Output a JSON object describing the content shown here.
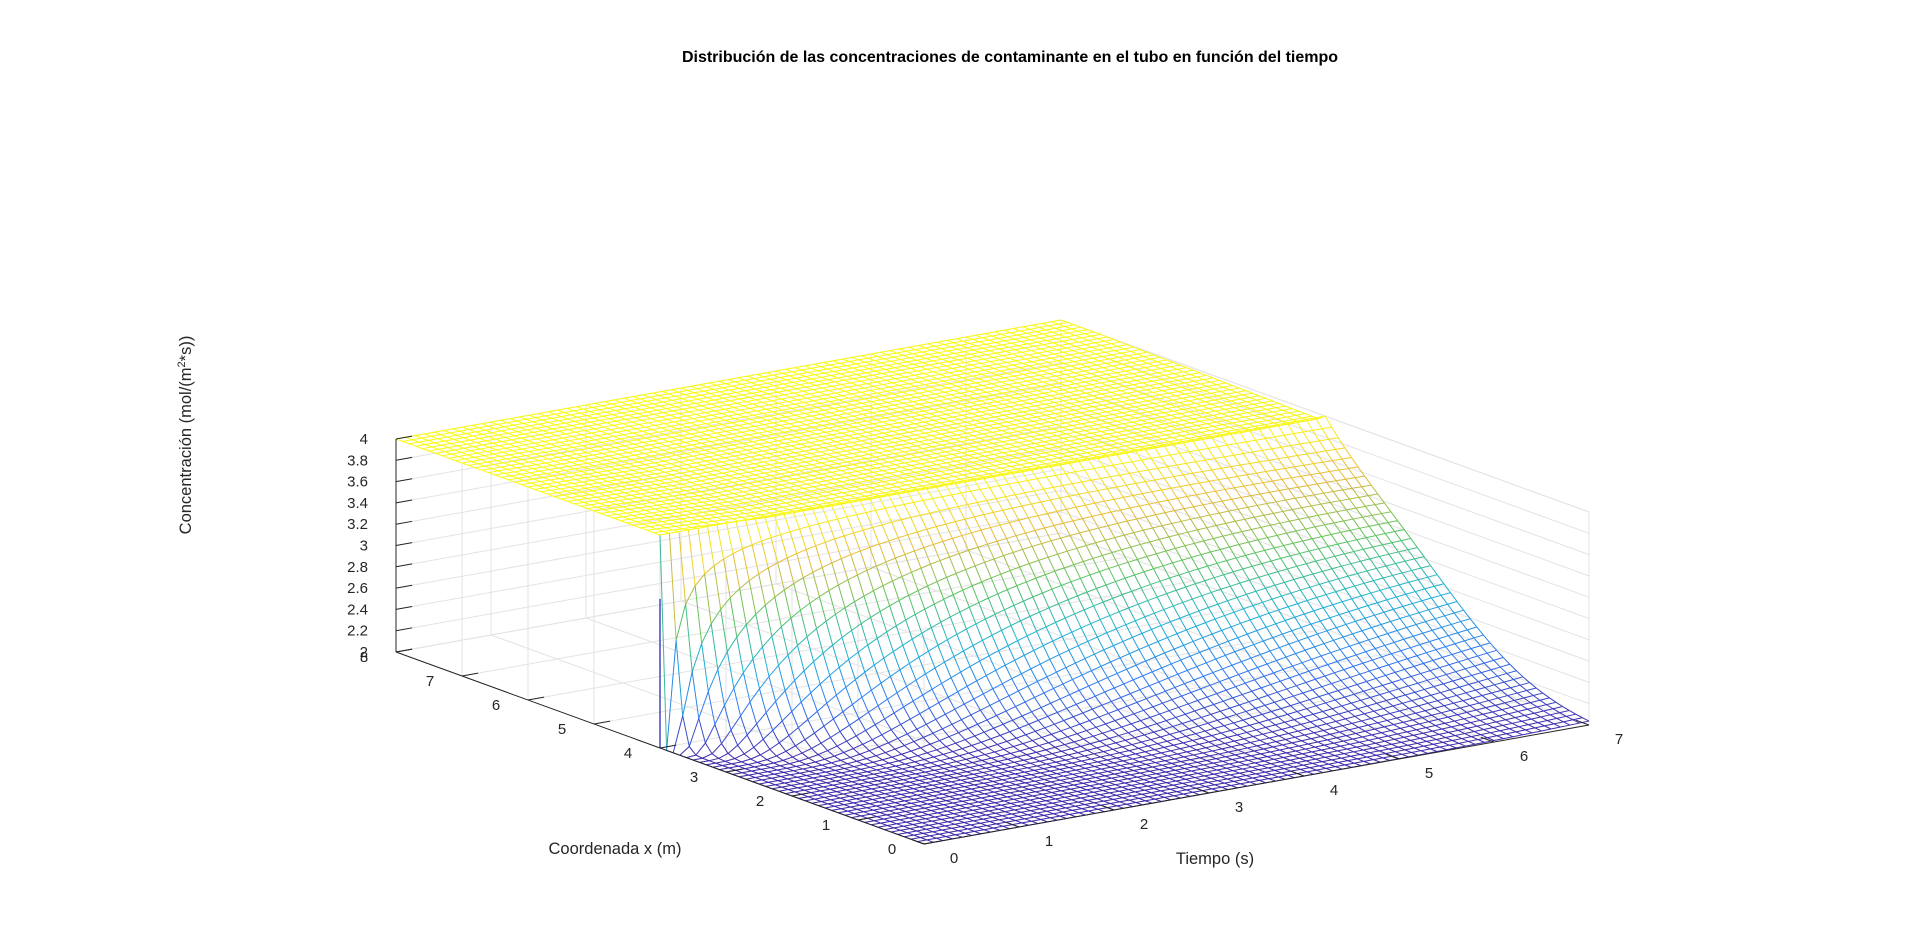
{
  "chart_data": {
    "type": "surface",
    "title": "Distribución de las concentraciones de contaminante en el tubo en función del tiempo",
    "xlabel": "Coordenada x (m)",
    "ylabel": "Tiempo (s)",
    "zlabel_main": "Concentración (mol/(m",
    "zlabel_sup": "2",
    "zlabel_end": "*s))",
    "x_ticks": [
      "0",
      "1",
      "2",
      "3",
      "4",
      "5",
      "6",
      "7",
      "8"
    ],
    "t_ticks": [
      "0",
      "1",
      "2",
      "3",
      "4",
      "5",
      "6",
      "7"
    ],
    "z_ticks": [
      "2",
      "2.2",
      "2.4",
      "2.6",
      "2.8",
      "3",
      "3.2",
      "3.4",
      "3.6",
      "3.8",
      "4"
    ],
    "xlim": [
      0,
      8
    ],
    "tlim": [
      0,
      7
    ],
    "zlim": [
      2,
      4
    ],
    "colormap": "parula",
    "colors": [
      "#3e26a8",
      "#2f79f4",
      "#1cb2d3",
      "#59c45e",
      "#e7ba3b",
      "#f9fb15"
    ],
    "boundary_condition": {
      "x": 4,
      "t": 0,
      "value": 2
    },
    "initial_profile": [
      {
        "x": 4,
        "t": 0,
        "c": 2.0
      },
      {
        "x": 4,
        "t": 0.02,
        "c": 3.4
      },
      {
        "x": 3,
        "t": 0.5,
        "c": 2.03
      },
      {
        "x": 0,
        "t": 7,
        "c": 2.35
      },
      {
        "x": 8,
        "t": 0,
        "c": 4.0
      },
      {
        "x": 8,
        "t": 7,
        "c": 3.95
      }
    ]
  }
}
